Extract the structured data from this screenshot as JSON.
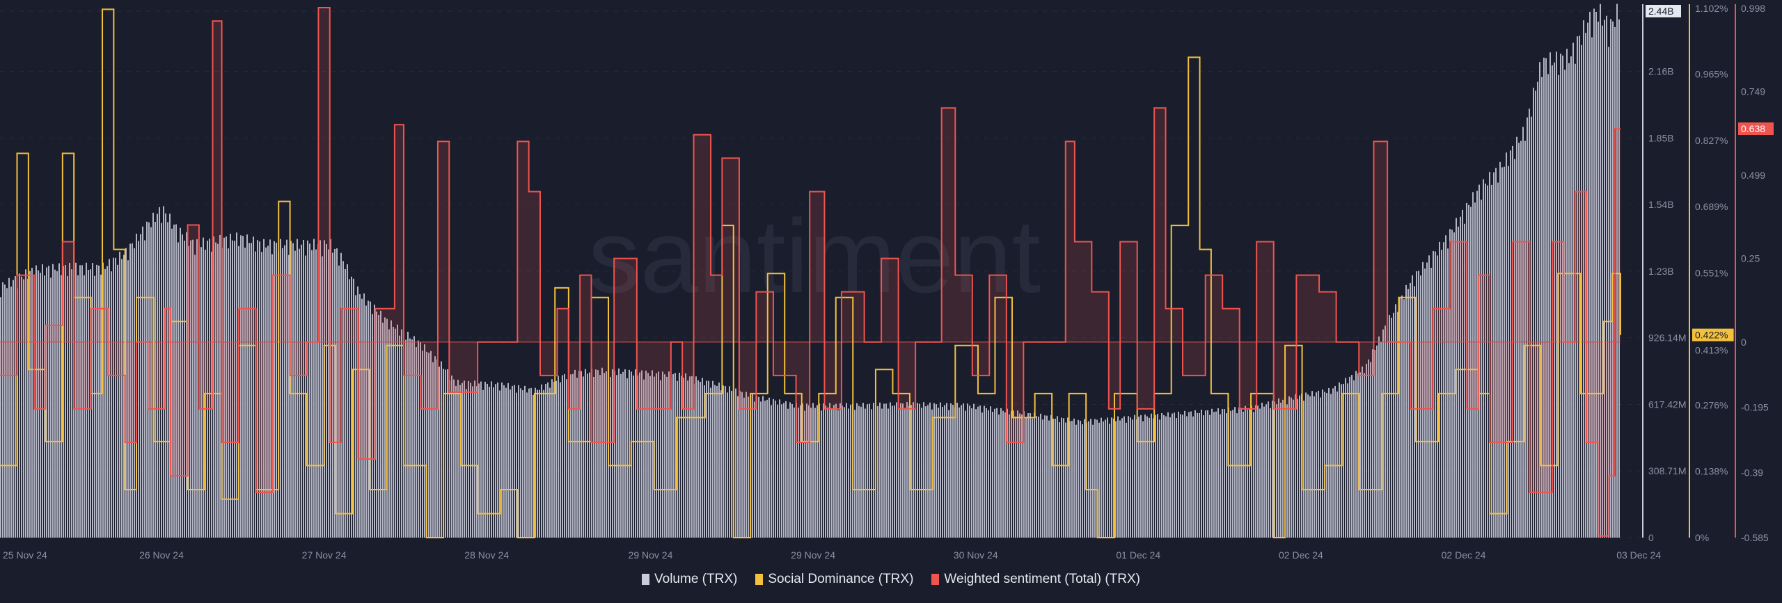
{
  "chart_data": {
    "type": "bar+line",
    "watermark": "santiment",
    "x_unit": "sample index",
    "x_range": [
      0,
      1425
    ],
    "x_tick_labels": [
      "25 Nov 24",
      "26 Nov 24",
      "27 Nov 24",
      "28 Nov 24",
      "29 Nov 24",
      "29 Nov 24",
      "30 Nov 24",
      "01 Dec 24",
      "02 Dec 24",
      "02 Dec 24",
      "03 Dec 24"
    ],
    "x_tick_positions": [
      22,
      142,
      285,
      428,
      572,
      715,
      858,
      1001,
      1144,
      1287,
      1441
    ],
    "series": [
      {
        "name": "Volume (TRX)",
        "type": "bar",
        "color": "#c9ccda",
        "unit": "M",
        "ylim": [
          0,
          2440
        ],
        "tick_labels": [
          "0",
          "308.71M",
          "617.42M",
          "926.14M",
          "1.23B",
          "1.54B",
          "1.85B",
          "2.16B",
          "2.44B"
        ],
        "tick_values": [
          0,
          308.71,
          617.42,
          926.14,
          1234.85,
          1543.56,
          1852.28,
          2160.99,
          2440
        ],
        "current_label": "2.44B",
        "points": [
          [
            0,
            1149
          ],
          [
            30,
            1228
          ],
          [
            60,
            1238
          ],
          [
            90,
            1238
          ],
          [
            110,
            1305
          ],
          [
            130,
            1439
          ],
          [
            142,
            1507
          ],
          [
            155,
            1412
          ],
          [
            170,
            1344
          ],
          [
            190,
            1360
          ],
          [
            210,
            1376
          ],
          [
            230,
            1344
          ],
          [
            260,
            1344
          ],
          [
            290,
            1344
          ],
          [
            300,
            1281
          ],
          [
            315,
            1123
          ],
          [
            340,
            991
          ],
          [
            370,
            885
          ],
          [
            390,
            780
          ],
          [
            400,
            711
          ],
          [
            440,
            701
          ],
          [
            470,
            675
          ],
          [
            500,
            754
          ],
          [
            530,
            765
          ],
          [
            570,
            754
          ],
          [
            600,
            743
          ],
          [
            630,
            701
          ],
          [
            660,
            648
          ],
          [
            700,
            606
          ],
          [
            750,
            606
          ],
          [
            800,
            611
          ],
          [
            850,
            606
          ],
          [
            900,
            569
          ],
          [
            950,
            532
          ],
          [
            1000,
            553
          ],
          [
            1050,
            574
          ],
          [
            1100,
            595
          ],
          [
            1140,
            648
          ],
          [
            1170,
            675
          ],
          [
            1200,
            780
          ],
          [
            1220,
            991
          ],
          [
            1240,
            1175
          ],
          [
            1270,
            1360
          ],
          [
            1300,
            1597
          ],
          [
            1320,
            1702
          ],
          [
            1340,
            1860
          ],
          [
            1355,
            2177
          ],
          [
            1380,
            2203
          ],
          [
            1395,
            2360
          ],
          [
            1405,
            2414
          ],
          [
            1415,
            2335
          ],
          [
            1425,
            2440
          ]
        ]
      },
      {
        "name": "Social Dominance (TRX)",
        "type": "line",
        "color": "#f4c13d",
        "unit": "%",
        "ylim": [
          0,
          1.102
        ],
        "tick_labels": [
          "0%",
          "0.138%",
          "0.276%",
          "0.413%",
          "0.551%",
          "0.689%",
          "0.827%",
          "0.965%",
          "1.102%"
        ],
        "tick_values": [
          0,
          0.138,
          0.276,
          0.413,
          0.551,
          0.689,
          0.827,
          0.965,
          1.102
        ],
        "current_label": "0.422%",
        "points": [
          [
            0,
            0.15
          ],
          [
            15,
            0.8
          ],
          [
            25,
            0.35
          ],
          [
            40,
            0.2
          ],
          [
            55,
            0.8
          ],
          [
            65,
            0.5
          ],
          [
            80,
            0.3
          ],
          [
            90,
            1.1
          ],
          [
            100,
            0.6
          ],
          [
            110,
            0.1
          ],
          [
            120,
            0.5
          ],
          [
            135,
            0.2
          ],
          [
            150,
            0.45
          ],
          [
            165,
            0.1
          ],
          [
            180,
            0.3
          ],
          [
            195,
            0.08
          ],
          [
            210,
            0.4
          ],
          [
            225,
            0.1
          ],
          [
            245,
            0.7
          ],
          [
            255,
            0.3
          ],
          [
            270,
            0.15
          ],
          [
            285,
            0.4
          ],
          [
            295,
            0.05
          ],
          [
            310,
            0.35
          ],
          [
            325,
            0.1
          ],
          [
            340,
            0.4
          ],
          [
            355,
            0.15
          ],
          [
            375,
            0.0
          ],
          [
            390,
            0.3
          ],
          [
            405,
            0.15
          ],
          [
            420,
            0.05
          ],
          [
            440,
            0.1
          ],
          [
            455,
            0.0
          ],
          [
            470,
            0.3
          ],
          [
            488,
            0.52
          ],
          [
            500,
            0.2
          ],
          [
            520,
            0.5
          ],
          [
            535,
            0.15
          ],
          [
            555,
            0.2
          ],
          [
            575,
            0.1
          ],
          [
            595,
            0.25
          ],
          [
            620,
            0.3
          ],
          [
            635,
            0.65
          ],
          [
            645,
            0.0
          ],
          [
            660,
            0.3
          ],
          [
            675,
            0.55
          ],
          [
            690,
            0.3
          ],
          [
            705,
            0.2
          ],
          [
            720,
            0.3
          ],
          [
            735,
            0.5
          ],
          [
            750,
            0.1
          ],
          [
            770,
            0.35
          ],
          [
            785,
            0.3
          ],
          [
            800,
            0.1
          ],
          [
            820,
            0.25
          ],
          [
            840,
            0.4
          ],
          [
            860,
            0.3
          ],
          [
            875,
            0.5
          ],
          [
            890,
            0.25
          ],
          [
            910,
            0.3
          ],
          [
            925,
            0.15
          ],
          [
            940,
            0.3
          ],
          [
            955,
            0.1
          ],
          [
            965,
            0.0
          ],
          [
            980,
            0.3
          ],
          [
            1000,
            0.2
          ],
          [
            1015,
            0.3
          ],
          [
            1030,
            0.65
          ],
          [
            1045,
            1.0
          ],
          [
            1055,
            0.6
          ],
          [
            1065,
            0.3
          ],
          [
            1080,
            0.15
          ],
          [
            1100,
            0.3
          ],
          [
            1120,
            0.0
          ],
          [
            1130,
            0.4
          ],
          [
            1145,
            0.1
          ],
          [
            1165,
            0.15
          ],
          [
            1180,
            0.3
          ],
          [
            1195,
            0.1
          ],
          [
            1215,
            0.3
          ],
          [
            1230,
            0.5
          ],
          [
            1245,
            0.2
          ],
          [
            1265,
            0.3
          ],
          [
            1280,
            0.35
          ],
          [
            1300,
            0.3
          ],
          [
            1310,
            0.05
          ],
          [
            1325,
            0.2
          ],
          [
            1340,
            0.4
          ],
          [
            1355,
            0.15
          ],
          [
            1370,
            0.55
          ],
          [
            1390,
            0.3
          ],
          [
            1410,
            0.45
          ],
          [
            1418,
            0.55
          ],
          [
            1425,
            0.422
          ]
        ]
      },
      {
        "name": "Weighted sentiment (Total) (TRX)",
        "type": "line",
        "color": "#f0544f",
        "ylim": [
          -0.585,
          0.998
        ],
        "tick_labels": [
          "-0.585",
          "-0.39",
          "-0.195",
          "0",
          "0.25",
          "0.499",
          "0.749",
          "0.998"
        ],
        "tick_values": [
          -0.585,
          -0.39,
          -0.195,
          0,
          0.25,
          0.499,
          0.749,
          0.998
        ],
        "current_label": "0.638",
        "points": [
          [
            0,
            -0.1
          ],
          [
            15,
            0.2
          ],
          [
            30,
            -0.2
          ],
          [
            40,
            0.05
          ],
          [
            55,
            0.3
          ],
          [
            65,
            -0.2
          ],
          [
            80,
            0.1
          ],
          [
            95,
            -0.1
          ],
          [
            110,
            -0.3
          ],
          [
            120,
            0.0
          ],
          [
            130,
            -0.2
          ],
          [
            145,
            0.1
          ],
          [
            150,
            -0.4
          ],
          [
            165,
            0.35
          ],
          [
            175,
            -0.2
          ],
          [
            187,
            0.96
          ],
          [
            195,
            -0.3
          ],
          [
            210,
            0.1
          ],
          [
            225,
            -0.45
          ],
          [
            240,
            0.2
          ],
          [
            255,
            -0.1
          ],
          [
            270,
            0.0
          ],
          [
            280,
            1.0
          ],
          [
            290,
            -0.3
          ],
          [
            300,
            0.1
          ],
          [
            315,
            -0.35
          ],
          [
            330,
            0.1
          ],
          [
            347,
            0.65
          ],
          [
            355,
            -0.1
          ],
          [
            370,
            -0.2
          ],
          [
            385,
            0.6
          ],
          [
            395,
            -0.15
          ],
          [
            420,
            0.0
          ],
          [
            430,
            0.0
          ],
          [
            455,
            0.6
          ],
          [
            465,
            0.45
          ],
          [
            475,
            -0.1
          ],
          [
            490,
            0.1
          ],
          [
            500,
            -0.2
          ],
          [
            510,
            0.2
          ],
          [
            520,
            -0.3
          ],
          [
            540,
            0.25
          ],
          [
            560,
            -0.2
          ],
          [
            575,
            -0.2
          ],
          [
            590,
            0.0
          ],
          [
            600,
            -0.2
          ],
          [
            610,
            0.62
          ],
          [
            625,
            0.2
          ],
          [
            635,
            0.55
          ],
          [
            650,
            -0.2
          ],
          [
            665,
            0.15
          ],
          [
            680,
            -0.1
          ],
          [
            700,
            -0.3
          ],
          [
            712,
            0.45
          ],
          [
            725,
            -0.2
          ],
          [
            740,
            0.15
          ],
          [
            760,
            0.0
          ],
          [
            775,
            0.25
          ],
          [
            790,
            -0.2
          ],
          [
            805,
            0.0
          ],
          [
            828,
            0.7
          ],
          [
            840,
            0.2
          ],
          [
            855,
            -0.1
          ],
          [
            870,
            0.2
          ],
          [
            885,
            -0.3
          ],
          [
            900,
            0.0
          ],
          [
            915,
            0.0
          ],
          [
            937,
            0.6
          ],
          [
            945,
            0.3
          ],
          [
            960,
            0.15
          ],
          [
            975,
            -0.2
          ],
          [
            985,
            0.3
          ],
          [
            1000,
            -0.2
          ],
          [
            1015,
            0.7
          ],
          [
            1025,
            0.1
          ],
          [
            1040,
            -0.1
          ],
          [
            1060,
            0.2
          ],
          [
            1075,
            0.1
          ],
          [
            1090,
            -0.2
          ],
          [
            1105,
            0.3
          ],
          [
            1120,
            -0.2
          ],
          [
            1140,
            0.2
          ],
          [
            1160,
            0.15
          ],
          [
            1175,
            0.0
          ],
          [
            1195,
            -0.1
          ],
          [
            1208,
            0.6
          ],
          [
            1220,
            0.0
          ],
          [
            1240,
            -0.2
          ],
          [
            1260,
            0.1
          ],
          [
            1275,
            0.3
          ],
          [
            1290,
            -0.2
          ],
          [
            1300,
            0.2
          ],
          [
            1310,
            -0.3
          ],
          [
            1330,
            0.3
          ],
          [
            1345,
            -0.45
          ],
          [
            1365,
            0.3
          ],
          [
            1375,
            0.0
          ],
          [
            1385,
            0.45
          ],
          [
            1395,
            -0.3
          ],
          [
            1405,
            -0.58
          ],
          [
            1415,
            -0.4
          ],
          [
            1420,
            0.638
          ],
          [
            1425,
            0.638
          ]
        ]
      }
    ],
    "legend": {
      "placement": "bottom-center",
      "items": [
        "Volume (TRX)",
        "Social Dominance (TRX)",
        "Weighted sentiment (Total) (TRX)"
      ]
    }
  }
}
